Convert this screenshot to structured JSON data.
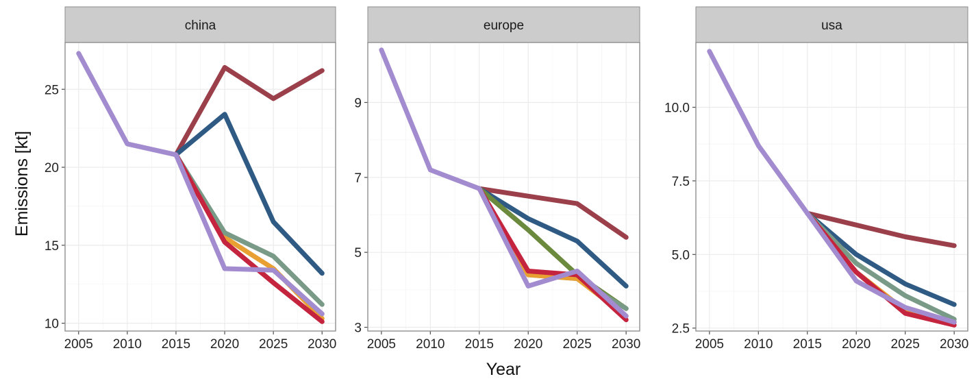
{
  "chart_data": {
    "type": "line",
    "xlabel": "Year",
    "ylabel": "Emissions [kt]",
    "x": [
      2005,
      2010,
      2015,
      2020,
      2025,
      2030
    ],
    "xticks": [
      "2005",
      "2010",
      "2015",
      "2020",
      "2025",
      "2030"
    ],
    "grid": true,
    "legend": "none",
    "panels": [
      {
        "title": "china",
        "ylim": [
          9.5,
          28
        ],
        "yticks": [
          10,
          15,
          20,
          25
        ],
        "ytick_labels": [
          "10",
          "15",
          "20",
          "25"
        ],
        "series": [
          {
            "color": "#9b3f4a",
            "values": [
              null,
              null,
              20.8,
              26.4,
              24.4,
              26.2
            ]
          },
          {
            "color": "#2e5a84",
            "values": [
              null,
              null,
              20.8,
              23.4,
              16.5,
              13.2
            ]
          },
          {
            "color": "#e8a033",
            "values": [
              null,
              null,
              20.8,
              15.5,
              13.5,
              10.3
            ]
          },
          {
            "color": "#7a9a88",
            "values": [
              null,
              null,
              20.8,
              15.8,
              14.3,
              11.2
            ]
          },
          {
            "color": "#c4243d",
            "values": [
              null,
              null,
              20.8,
              15.2,
              12.6,
              10.1
            ]
          },
          {
            "color": "#a38bcf",
            "values": [
              27.3,
              21.5,
              20.8,
              13.5,
              13.4,
              10.6
            ]
          }
        ]
      },
      {
        "title": "europe",
        "ylim": [
          2.9,
          10.6
        ],
        "yticks": [
          3,
          5,
          7,
          9
        ],
        "ytick_labels": [
          "3",
          "5",
          "7",
          "9"
        ],
        "series": [
          {
            "color": "#9b3f4a",
            "values": [
              null,
              null,
              6.7,
              6.5,
              6.3,
              5.4
            ]
          },
          {
            "color": "#2e5a84",
            "values": [
              null,
              null,
              6.7,
              5.9,
              5.3,
              4.1
            ]
          },
          {
            "color": "#6b8a3d",
            "values": [
              null,
              null,
              6.7,
              5.6,
              4.4,
              3.5
            ]
          },
          {
            "color": "#7a9a88",
            "values": [
              null,
              null,
              6.7,
              4.4,
              4.3,
              3.5
            ]
          },
          {
            "color": "#e8a033",
            "values": [
              null,
              null,
              6.7,
              4.4,
              4.3,
              3.3
            ]
          },
          {
            "color": "#c4243d",
            "values": [
              null,
              null,
              6.7,
              4.5,
              4.4,
              3.2
            ]
          },
          {
            "color": "#a38bcf",
            "values": [
              10.4,
              7.2,
              6.7,
              4.1,
              4.5,
              3.3
            ]
          }
        ]
      },
      {
        "title": "usa",
        "ylim": [
          2.4,
          12.2
        ],
        "yticks": [
          2.5,
          5.0,
          7.5,
          10.0
        ],
        "ytick_labels": [
          "2.5",
          "5.0",
          "7.5",
          "10.0"
        ],
        "series": [
          {
            "color": "#9b3f4a",
            "values": [
              null,
              null,
              6.4,
              6.0,
              5.6,
              5.3
            ]
          },
          {
            "color": "#2e5a84",
            "values": [
              null,
              null,
              6.4,
              5.0,
              4.0,
              3.3
            ]
          },
          {
            "color": "#7a9a88",
            "values": [
              null,
              null,
              6.4,
              4.7,
              3.6,
              2.8
            ]
          },
          {
            "color": "#e8a033",
            "values": [
              null,
              null,
              6.4,
              4.4,
              3.1,
              2.7
            ]
          },
          {
            "color": "#c4243d",
            "values": [
              null,
              null,
              6.4,
              4.4,
              3.0,
              2.6
            ]
          },
          {
            "color": "#a38bcf",
            "values": [
              11.9,
              8.7,
              6.4,
              4.1,
              3.2,
              2.7
            ]
          }
        ]
      }
    ]
  }
}
